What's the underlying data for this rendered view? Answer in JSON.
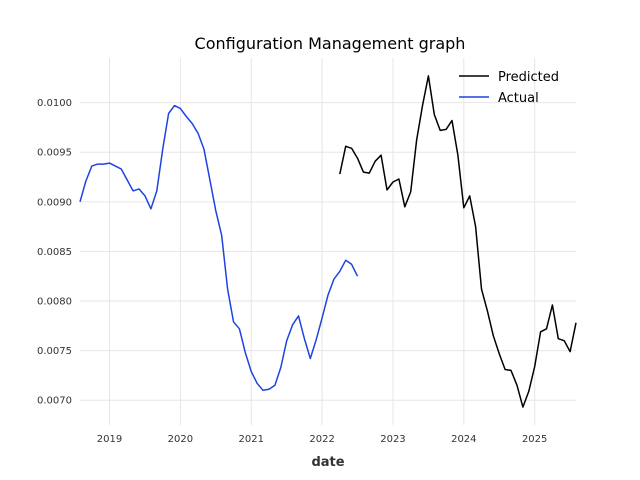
{
  "chart_data": {
    "type": "line",
    "title": "Configuration Management graph",
    "xlabel": "date",
    "ylabel": "",
    "x_type": "date",
    "xlim": [
      "2018-08-01",
      "2025-08-01"
    ],
    "ylim": [
      0.00675,
      0.01045
    ],
    "x_ticks": [
      "2019",
      "2020",
      "2021",
      "2022",
      "2023",
      "2024",
      "2025"
    ],
    "y_ticks": [
      "0.0070",
      "0.0075",
      "0.0080",
      "0.0085",
      "0.0090",
      "0.0095",
      "0.0100"
    ],
    "grid": true,
    "legend_position": "top-right",
    "series": [
      {
        "name": "Predicted",
        "color": "#000000",
        "x": [
          "2022-04-01",
          "2022-05-01",
          "2022-06-01",
          "2022-07-01",
          "2022-08-01",
          "2022-09-01",
          "2022-10-01",
          "2022-11-01",
          "2022-12-01",
          "2023-01-01",
          "2023-02-01",
          "2023-03-01",
          "2023-04-01",
          "2023-05-01",
          "2023-06-01",
          "2023-07-01",
          "2023-08-01",
          "2023-09-01",
          "2023-10-01",
          "2023-11-01",
          "2023-12-01",
          "2024-01-01",
          "2024-02-01",
          "2024-03-01",
          "2024-04-01",
          "2024-05-01",
          "2024-06-01",
          "2024-07-01",
          "2024-08-01",
          "2024-09-01",
          "2024-10-01",
          "2024-11-01",
          "2024-12-01",
          "2025-01-01",
          "2025-02-01",
          "2025-03-01",
          "2025-04-01",
          "2025-05-01",
          "2025-06-01",
          "2025-07-01",
          "2025-08-01"
        ],
        "values": [
          0.00928,
          0.00956,
          0.00954,
          0.00944,
          0.0093,
          0.00929,
          0.00941,
          0.00947,
          0.00912,
          0.0092,
          0.00923,
          0.00895,
          0.0091,
          0.00962,
          0.00997,
          0.01027,
          0.00988,
          0.00972,
          0.00973,
          0.00982,
          0.00947,
          0.00894,
          0.00906,
          0.00875,
          0.00812,
          0.0079,
          0.00765,
          0.00747,
          0.00731,
          0.0073,
          0.00715,
          0.00693,
          0.00709,
          0.00734,
          0.00769,
          0.00772,
          0.00796,
          0.00762,
          0.0076,
          0.00749,
          0.00778
        ]
      },
      {
        "name": "Actual",
        "color": "#1f43e0",
        "x": [
          "2018-08-01",
          "2018-09-01",
          "2018-10-01",
          "2018-11-01",
          "2018-12-01",
          "2019-01-01",
          "2019-02-01",
          "2019-03-01",
          "2019-04-01",
          "2019-05-01",
          "2019-06-01",
          "2019-07-01",
          "2019-08-01",
          "2019-09-01",
          "2019-10-01",
          "2019-11-01",
          "2019-12-01",
          "2020-01-01",
          "2020-02-01",
          "2020-03-01",
          "2020-04-01",
          "2020-05-01",
          "2020-06-01",
          "2020-07-01",
          "2020-08-01",
          "2020-09-01",
          "2020-10-01",
          "2020-11-01",
          "2020-12-01",
          "2021-01-01",
          "2021-02-01",
          "2021-03-01",
          "2021-04-01",
          "2021-05-01",
          "2021-06-01",
          "2021-07-01",
          "2021-08-01",
          "2021-09-01",
          "2021-10-01",
          "2021-11-01",
          "2021-12-01",
          "2022-01-01",
          "2022-02-01",
          "2022-03-01",
          "2022-04-01",
          "2022-05-01",
          "2022-06-01",
          "2022-07-01"
        ],
        "values": [
          0.009,
          0.00921,
          0.00936,
          0.00938,
          0.00938,
          0.00939,
          0.00936,
          0.00933,
          0.00922,
          0.00911,
          0.00913,
          0.00906,
          0.00893,
          0.00911,
          0.00953,
          0.00989,
          0.00997,
          0.00994,
          0.00986,
          0.00979,
          0.00969,
          0.00953,
          0.00922,
          0.00891,
          0.00866,
          0.00812,
          0.00779,
          0.00772,
          0.00748,
          0.00729,
          0.00717,
          0.0071,
          0.00711,
          0.00715,
          0.00733,
          0.0076,
          0.00776,
          0.00785,
          0.00762,
          0.00742,
          0.00761,
          0.00783,
          0.00806,
          0.00822,
          0.0083,
          0.00841,
          0.00837,
          0.00825
        ]
      }
    ]
  }
}
